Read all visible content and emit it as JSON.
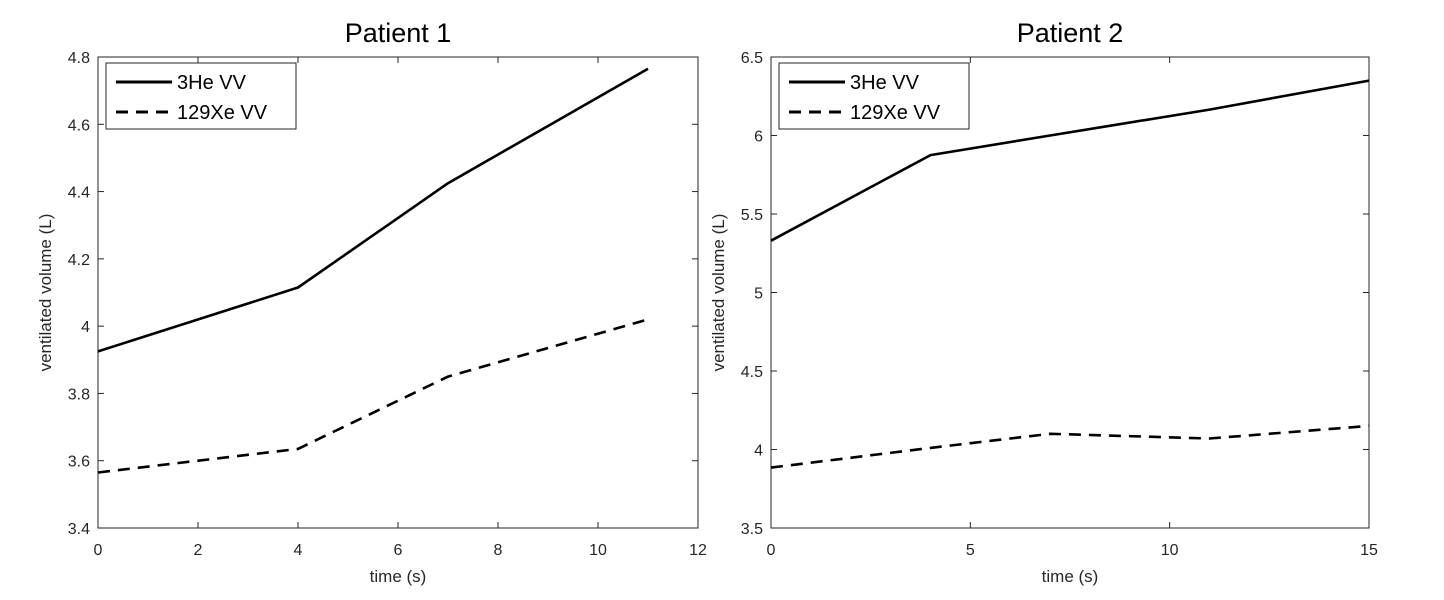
{
  "chart_data": [
    {
      "type": "line",
      "title": "Patient 1",
      "xlabel": "time (s)",
      "ylabel": "ventilated volume (L)",
      "xlim": [
        0,
        12
      ],
      "ylim": [
        3.4,
        4.8
      ],
      "xticks": [
        0,
        2,
        4,
        6,
        8,
        10,
        12
      ],
      "yticks": [
        3.4,
        3.6,
        3.8,
        4,
        4.2,
        4.4,
        4.6,
        4.8
      ],
      "x": [
        0,
        4,
        7,
        11
      ],
      "series": [
        {
          "name": "3He VV",
          "style": "solid",
          "values": [
            3.925,
            4.115,
            4.425,
            4.765
          ]
        },
        {
          "name": "129Xe VV",
          "style": "dashed",
          "values": [
            3.565,
            3.635,
            3.85,
            4.02
          ]
        }
      ],
      "legend": "top-left",
      "grid": false
    },
    {
      "type": "line",
      "title": "Patient 2",
      "xlabel": "time (s)",
      "ylabel": "ventilated volume (L)",
      "xlim": [
        0,
        15
      ],
      "ylim": [
        3.5,
        6.5
      ],
      "xticks": [
        0,
        5,
        10,
        15
      ],
      "yticks": [
        3.5,
        4,
        4.5,
        5,
        5.5,
        6,
        6.5
      ],
      "x": [
        0,
        4,
        7,
        11,
        15
      ],
      "series": [
        {
          "name": "3He VV",
          "style": "solid",
          "values": [
            5.33,
            5.875,
            6.0,
            6.165,
            6.35
          ]
        },
        {
          "name": "129Xe VV",
          "style": "dashed",
          "values": [
            3.885,
            4.01,
            4.1,
            4.07,
            4.15
          ]
        }
      ],
      "legend": "top-left",
      "grid": false
    }
  ]
}
